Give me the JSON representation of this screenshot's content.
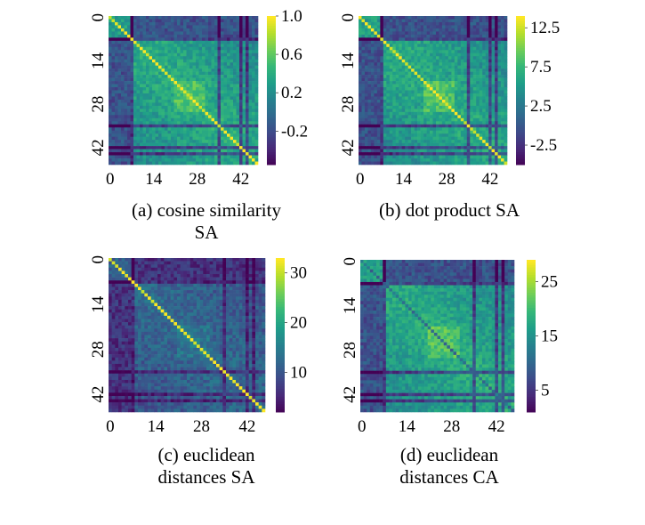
{
  "chart_data": [
    {
      "type": "heatmap",
      "caption": [
        "(a) cosine similarity",
        "SA"
      ],
      "size": 48,
      "xticks": [
        "0",
        "14",
        "28",
        "42"
      ],
      "yticks": [
        "0",
        "14",
        "28",
        "42"
      ],
      "colormap": "viridis",
      "vrange": [
        -0.55,
        1.0
      ],
      "colorbar_ticks": [
        1.0,
        0.6,
        0.2,
        -0.2
      ],
      "colorbar_labels": [
        "1.0",
        "0.6",
        "0.2",
        "-0.2"
      ]
    },
    {
      "type": "heatmap",
      "caption": [
        "(b) dot product SA"
      ],
      "size": 48,
      "xticks": [
        "0",
        "14",
        "28",
        "42"
      ],
      "yticks": [
        "0",
        "14",
        "28",
        "42"
      ],
      "colormap": "viridis",
      "vrange": [
        -5,
        14
      ],
      "colorbar_ticks": [
        12.5,
        7.5,
        2.5,
        -2.5
      ],
      "colorbar_labels": [
        "12.5",
        "7.5",
        "2.5",
        "-2.5"
      ]
    },
    {
      "type": "heatmap",
      "caption": [
        "(c) euclidean",
        "distances SA"
      ],
      "size": 48,
      "xticks": [
        "0",
        "14",
        "28",
        "42"
      ],
      "yticks": [
        "0",
        "14",
        "28",
        "42"
      ],
      "colormap": "viridis",
      "vrange": [
        2,
        33
      ],
      "colorbar_ticks": [
        30,
        20,
        10
      ],
      "colorbar_labels": [
        "30",
        "20",
        "10"
      ]
    },
    {
      "type": "heatmap",
      "caption": [
        "(d) euclidean",
        "distances CA"
      ],
      "size": 48,
      "xticks": [
        "0",
        "14",
        "28",
        "42"
      ],
      "yticks": [
        "0",
        "14",
        "28",
        "42"
      ],
      "colormap": "viridis",
      "vrange": [
        1,
        29
      ],
      "colorbar_ticks": [
        25,
        15,
        5
      ],
      "colorbar_labels": [
        "25",
        "15",
        "5"
      ]
    }
  ]
}
